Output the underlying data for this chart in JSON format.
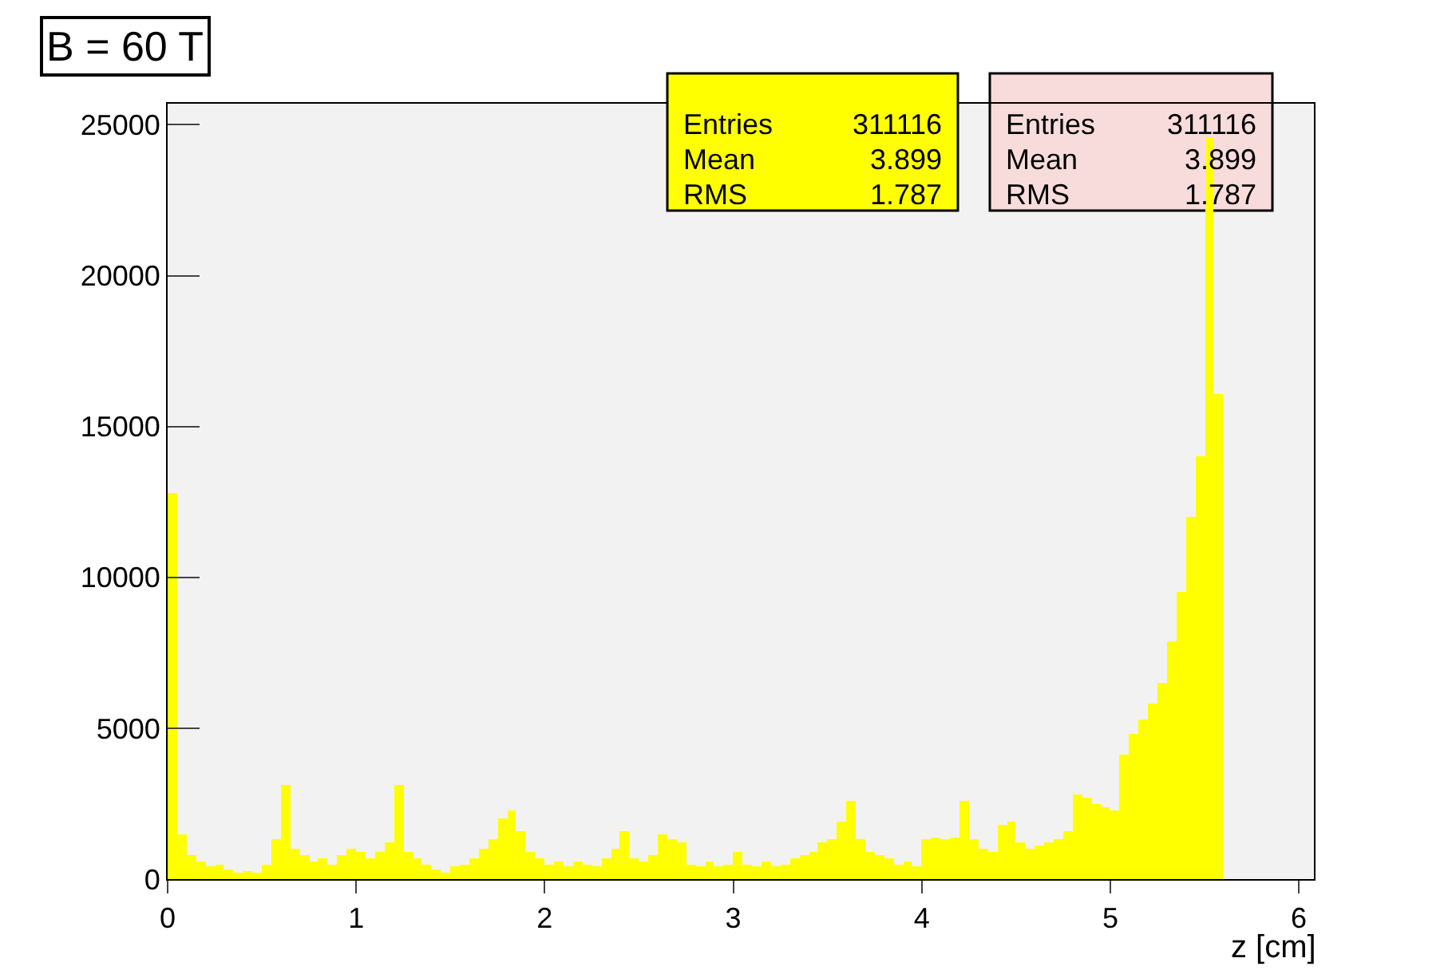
{
  "chart_data": {
    "type": "histogram",
    "title": "B = 60 T",
    "xlabel": "z [cm]",
    "bins": [
      0,
      0.05,
      0.1,
      0.15,
      0.2,
      0.25,
      0.3,
      0.35,
      0.4,
      0.45,
      0.5,
      0.55,
      0.6,
      0.65,
      0.7,
      0.75,
      0.8,
      0.85,
      0.9,
      0.95,
      1,
      1.05,
      1.1,
      1.15,
      1.2,
      1.25,
      1.3,
      1.35,
      1.4,
      1.45,
      1.5,
      1.55,
      1.6,
      1.65,
      1.7,
      1.75,
      1.8,
      1.85,
      1.9,
      1.95,
      2,
      2.05,
      2.1,
      2.15,
      2.2,
      2.25,
      2.3,
      2.35,
      2.4,
      2.45,
      2.5,
      2.55,
      2.6,
      2.65,
      2.7,
      2.75,
      2.8,
      2.85,
      2.9,
      2.95,
      3,
      3.05,
      3.1,
      3.15,
      3.2,
      3.25,
      3.3,
      3.35,
      3.4,
      3.45,
      3.5,
      3.55,
      3.6,
      3.65,
      3.7,
      3.75,
      3.8,
      3.85,
      3.9,
      3.95,
      4,
      4.05,
      4.1,
      4.15,
      4.2,
      4.25,
      4.3,
      4.35,
      4.4,
      4.45,
      4.5,
      4.55,
      4.6,
      4.65,
      4.7,
      4.75,
      4.8,
      4.85,
      4.9,
      4.95,
      5,
      5.05,
      5.1,
      5.15,
      5.2,
      5.25,
      5.3,
      5.35,
      5.4,
      5.45,
      5.5,
      5.55,
      5.6
    ],
    "values": [
      12800,
      1500,
      800,
      600,
      400,
      450,
      300,
      200,
      250,
      200,
      500,
      1300,
      3100,
      1000,
      800,
      600,
      700,
      500,
      800,
      1000,
      900,
      700,
      900,
      1200,
      3100,
      900,
      700,
      500,
      300,
      200,
      400,
      500,
      700,
      1000,
      1300,
      2000,
      2300,
      1600,
      900,
      700,
      500,
      600,
      400,
      600,
      500,
      400,
      700,
      1000,
      1600,
      700,
      600,
      800,
      1500,
      1300,
      1200,
      500,
      400,
      600,
      400,
      500,
      900,
      500,
      400,
      600,
      400,
      500,
      700,
      800,
      900,
      1200,
      1300,
      1900,
      2600,
      1300,
      900,
      800,
      700,
      500,
      600,
      400,
      1300,
      1400,
      1300,
      1400,
      2600,
      1300,
      1000,
      900,
      1800,
      1900,
      1200,
      1000,
      1100,
      1200,
      1300,
      1600,
      2800,
      2700,
      2500,
      2400,
      2300,
      4100,
      4800,
      5300,
      5800,
      6500,
      7900,
      9500,
      12000,
      14000,
      24600,
      16100
    ],
    "color": "#ffff00",
    "xlim": [
      0,
      6.08
    ],
    "xticks": [
      0,
      1,
      2,
      3,
      4,
      5,
      6
    ],
    "ylim": [
      0,
      25700
    ],
    "yticks": [
      0,
      5000,
      10000,
      15000,
      20000,
      25000
    ],
    "grid": false,
    "legend": false,
    "annotations": [
      "Entries",
      "311116",
      "Mean",
      "3.899",
      "RMS",
      "1.787",
      "Entries",
      "311116",
      "Mean",
      "3.899",
      "RMS",
      "1.787"
    ]
  }
}
